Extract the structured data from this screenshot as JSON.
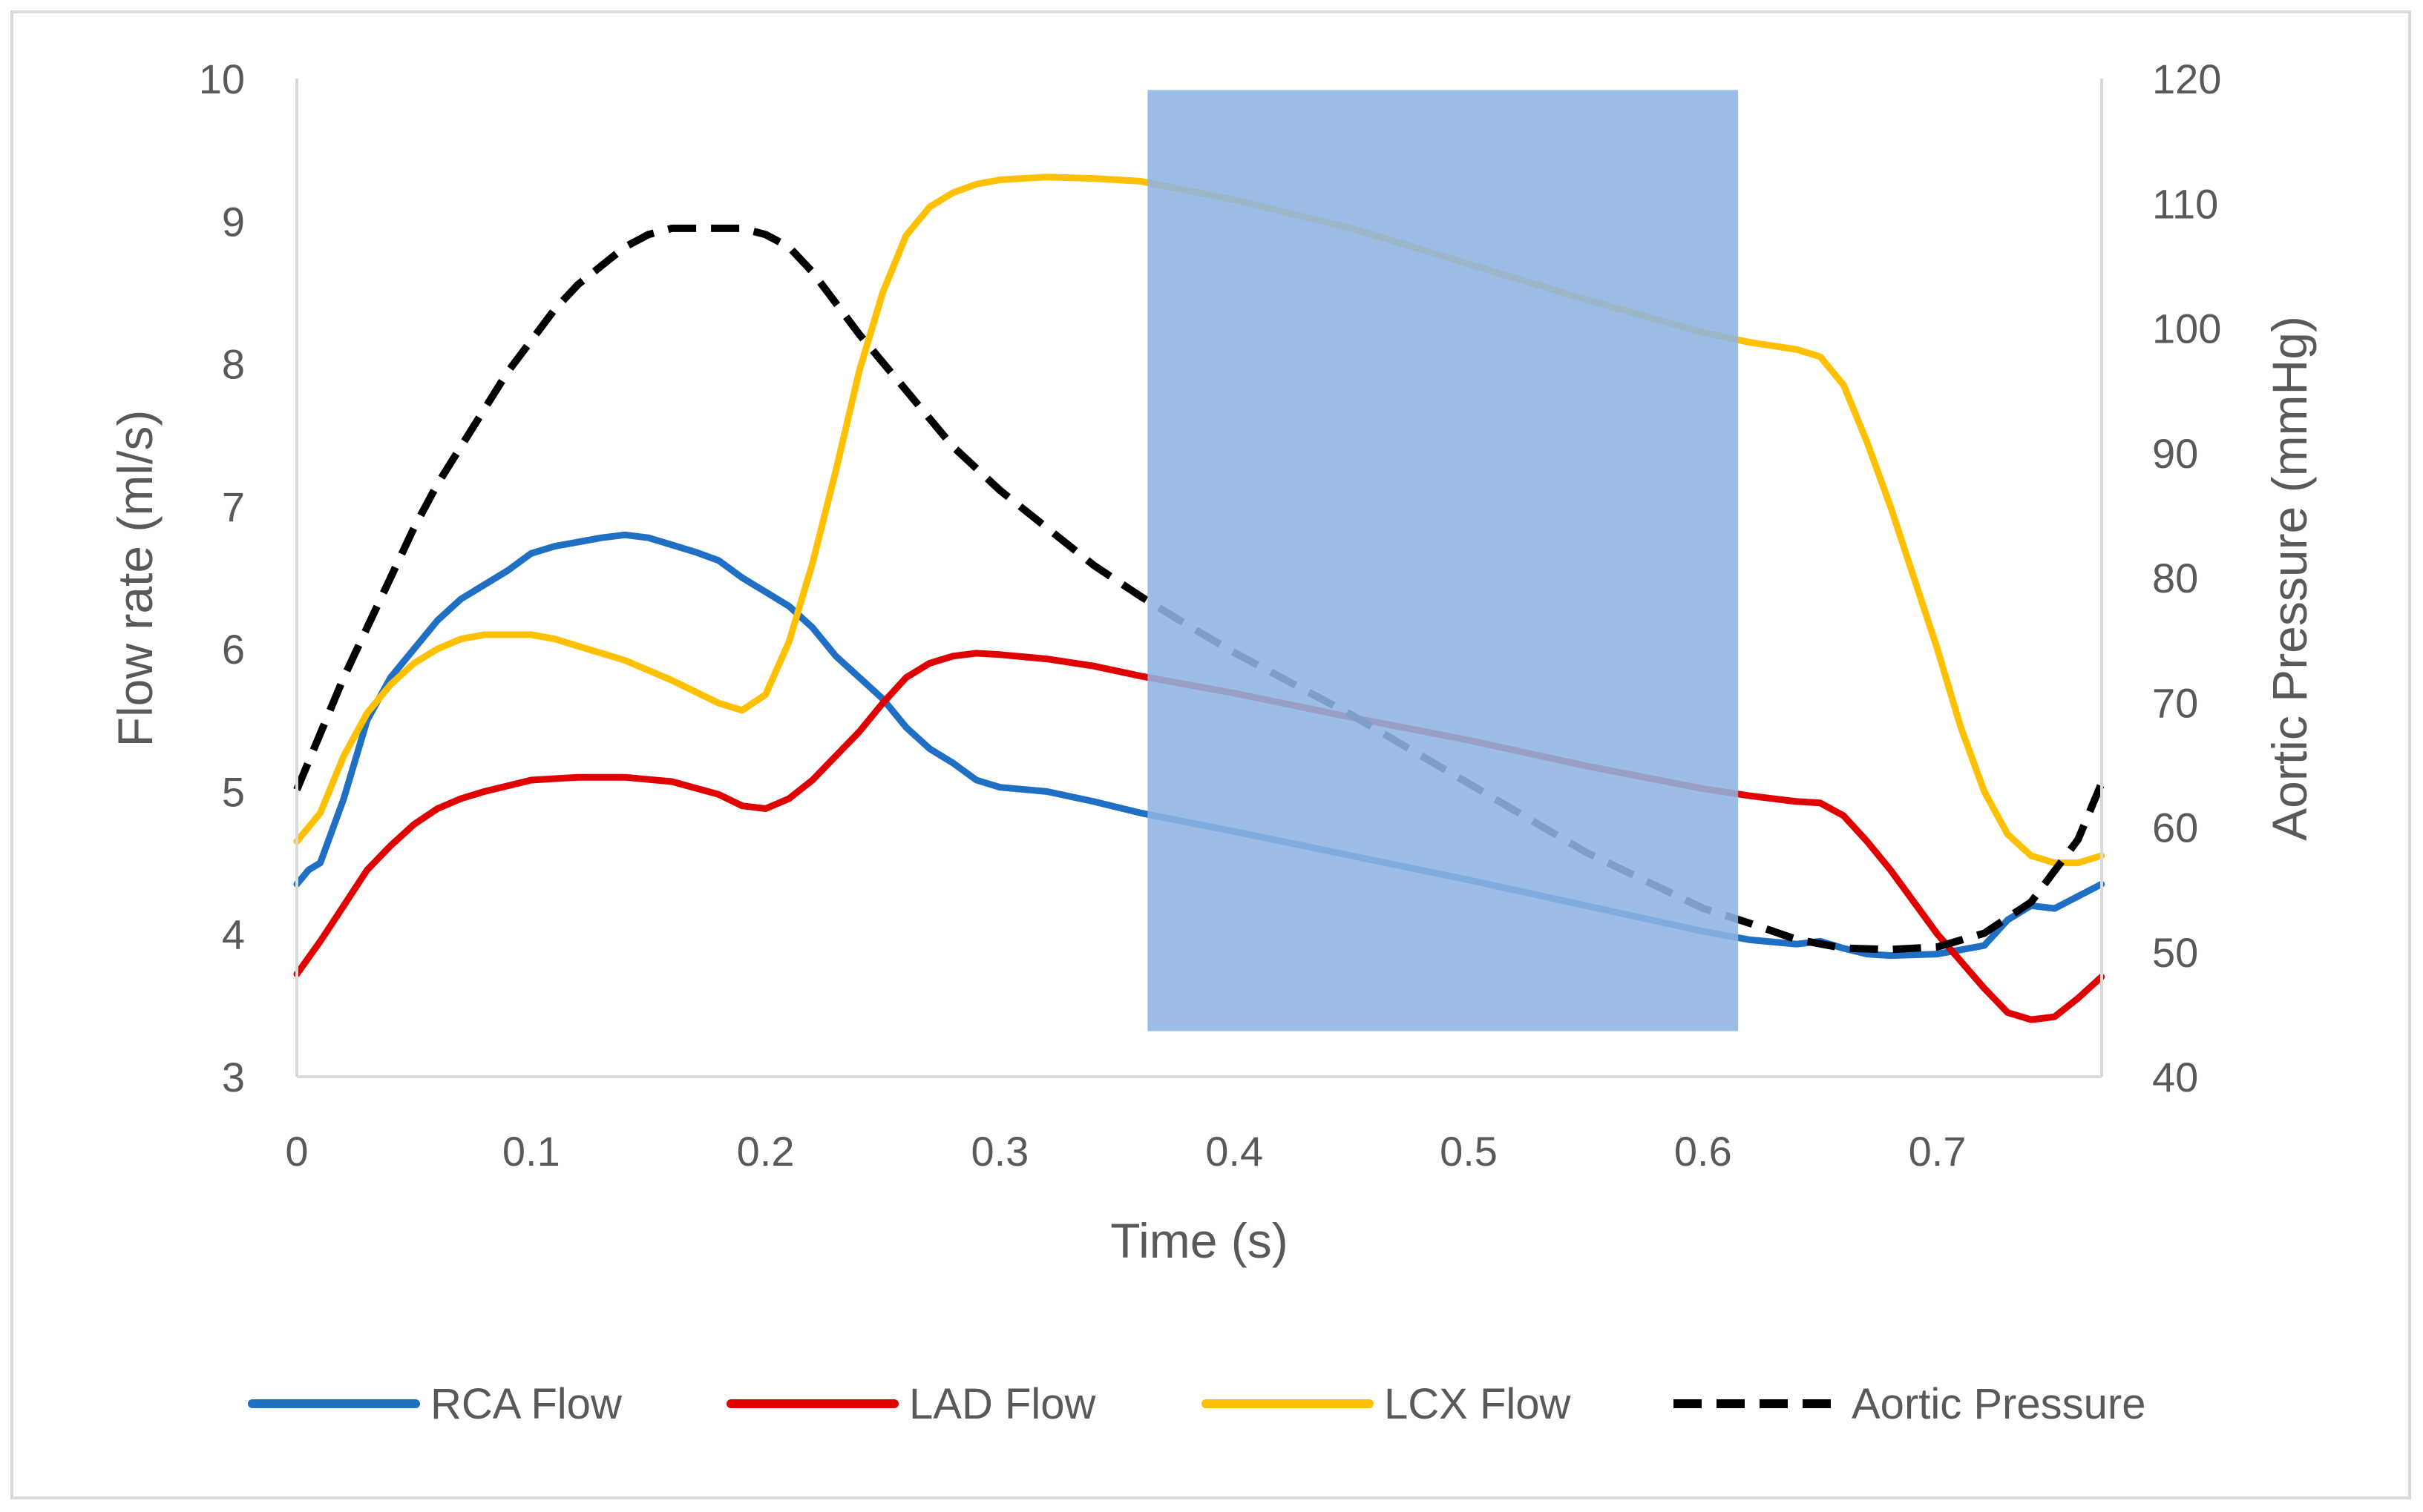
{
  "chart_data": {
    "type": "line",
    "title": "",
    "xlabel": "Time (s)",
    "ylabel": "Flow rate (ml/s)",
    "y2label": "Aortic Pressure (mmHg)",
    "xlim": [
      0,
      0.77
    ],
    "ylim": [
      3,
      10
    ],
    "y2lim": [
      40,
      120
    ],
    "xticks": [
      "0",
      "0.1",
      "0.2",
      "0.3",
      "0.4",
      "0.5",
      "0.6",
      "0.7"
    ],
    "yticks": [
      "3",
      "4",
      "5",
      "6",
      "7",
      "8",
      "9",
      "10"
    ],
    "y2ticks": [
      "40",
      "50",
      "60",
      "70",
      "80",
      "90",
      "100",
      "110",
      "120"
    ],
    "grid": false,
    "legend_position": "bottom",
    "shaded_region": {
      "x_start": 0.363,
      "x_end": 0.615,
      "y_bottom": 3.32,
      "y_top": 9.92,
      "color": "#8EB4E3"
    },
    "series": [
      {
        "name": "RCA Flow",
        "color": "#1F6FC5",
        "axis": "left",
        "style": "solid",
        "x": [
          0,
          0.005,
          0.01,
          0.02,
          0.03,
          0.04,
          0.05,
          0.06,
          0.07,
          0.08,
          0.09,
          0.1,
          0.11,
          0.12,
          0.13,
          0.14,
          0.15,
          0.16,
          0.17,
          0.18,
          0.19,
          0.2,
          0.21,
          0.22,
          0.23,
          0.24,
          0.25,
          0.26,
          0.27,
          0.28,
          0.29,
          0.3,
          0.32,
          0.34,
          0.36,
          0.4,
          0.45,
          0.5,
          0.55,
          0.6,
          0.62,
          0.64,
          0.65,
          0.66,
          0.67,
          0.68,
          0.7,
          0.72,
          0.73,
          0.74,
          0.75,
          0.77
        ],
        "values": [
          4.35,
          4.45,
          4.5,
          4.95,
          5.5,
          5.8,
          6.0,
          6.2,
          6.35,
          6.45,
          6.55,
          6.67,
          6.72,
          6.75,
          6.78,
          6.8,
          6.78,
          6.73,
          6.68,
          6.62,
          6.5,
          6.4,
          6.3,
          6.15,
          5.95,
          5.8,
          5.65,
          5.45,
          5.3,
          5.2,
          5.08,
          5.03,
          5.0,
          4.93,
          4.85,
          4.72,
          4.55,
          4.38,
          4.2,
          4.02,
          3.96,
          3.93,
          3.95,
          3.9,
          3.86,
          3.85,
          3.86,
          3.92,
          4.1,
          4.2,
          4.18,
          4.35
        ]
      },
      {
        "name": "LAD Flow",
        "color": "#E00000",
        "axis": "left",
        "style": "solid",
        "x": [
          0,
          0.01,
          0.02,
          0.03,
          0.04,
          0.05,
          0.06,
          0.07,
          0.08,
          0.09,
          0.1,
          0.12,
          0.14,
          0.16,
          0.18,
          0.19,
          0.2,
          0.21,
          0.22,
          0.23,
          0.24,
          0.25,
          0.26,
          0.27,
          0.28,
          0.29,
          0.3,
          0.32,
          0.34,
          0.36,
          0.4,
          0.45,
          0.5,
          0.55,
          0.6,
          0.62,
          0.64,
          0.65,
          0.66,
          0.67,
          0.68,
          0.7,
          0.72,
          0.73,
          0.74,
          0.75,
          0.76,
          0.77
        ],
        "values": [
          3.72,
          3.95,
          4.2,
          4.45,
          4.62,
          4.77,
          4.88,
          4.95,
          5.0,
          5.04,
          5.08,
          5.1,
          5.1,
          5.07,
          4.98,
          4.9,
          4.88,
          4.95,
          5.08,
          5.25,
          5.42,
          5.62,
          5.8,
          5.9,
          5.95,
          5.97,
          5.96,
          5.93,
          5.88,
          5.81,
          5.69,
          5.52,
          5.36,
          5.18,
          5.02,
          4.97,
          4.93,
          4.92,
          4.83,
          4.65,
          4.45,
          4.0,
          3.62,
          3.45,
          3.4,
          3.42,
          3.55,
          3.7
        ]
      },
      {
        "name": "LCX Flow",
        "color": "#FFC000",
        "axis": "left",
        "style": "solid",
        "x": [
          0,
          0.01,
          0.02,
          0.03,
          0.04,
          0.05,
          0.06,
          0.07,
          0.08,
          0.09,
          0.1,
          0.11,
          0.12,
          0.14,
          0.16,
          0.18,
          0.19,
          0.2,
          0.21,
          0.22,
          0.23,
          0.24,
          0.25,
          0.26,
          0.27,
          0.28,
          0.29,
          0.3,
          0.32,
          0.34,
          0.36,
          0.4,
          0.45,
          0.5,
          0.55,
          0.6,
          0.62,
          0.64,
          0.65,
          0.66,
          0.67,
          0.68,
          0.69,
          0.7,
          0.71,
          0.72,
          0.73,
          0.74,
          0.75,
          0.76,
          0.77
        ],
        "values": [
          4.65,
          4.85,
          5.25,
          5.55,
          5.75,
          5.9,
          6.0,
          6.07,
          6.1,
          6.1,
          6.1,
          6.07,
          6.02,
          5.92,
          5.78,
          5.62,
          5.57,
          5.68,
          6.05,
          6.6,
          7.25,
          7.95,
          8.5,
          8.9,
          9.1,
          9.2,
          9.26,
          9.29,
          9.31,
          9.3,
          9.28,
          9.15,
          8.95,
          8.7,
          8.45,
          8.22,
          8.15,
          8.1,
          8.05,
          7.85,
          7.45,
          7.0,
          6.5,
          6.0,
          5.45,
          5.0,
          4.7,
          4.55,
          4.5,
          4.5,
          4.55
        ]
      },
      {
        "name": "Aortic Pressure",
        "color": "#000000",
        "axis": "right",
        "style": "dashed",
        "x": [
          0,
          0.01,
          0.02,
          0.03,
          0.04,
          0.05,
          0.06,
          0.07,
          0.08,
          0.09,
          0.1,
          0.11,
          0.12,
          0.13,
          0.14,
          0.15,
          0.16,
          0.17,
          0.18,
          0.19,
          0.2,
          0.21,
          0.22,
          0.23,
          0.24,
          0.26,
          0.28,
          0.3,
          0.32,
          0.34,
          0.36,
          0.38,
          0.4,
          0.45,
          0.5,
          0.55,
          0.6,
          0.62,
          0.64,
          0.66,
          0.68,
          0.7,
          0.72,
          0.74,
          0.76,
          0.77
        ],
        "values": [
          63,
          67.5,
          72,
          76,
          80,
          84,
          87.5,
          90.5,
          93.5,
          96.5,
          99,
          101.5,
          103.5,
          105,
          106.5,
          107.5,
          108,
          108,
          108,
          108,
          107.5,
          106.5,
          104.5,
          102,
          99.5,
          95,
          90.5,
          87,
          84,
          81,
          78.5,
          76.2,
          74,
          69,
          63.5,
          58,
          53.5,
          52.3,
          51,
          50.3,
          50.2,
          50.4,
          51.5,
          54,
          59,
          63.5
        ]
      }
    ]
  }
}
